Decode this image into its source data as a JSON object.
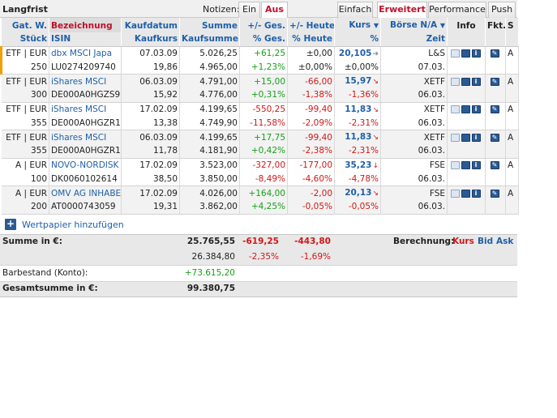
{
  "topbar": {
    "title": "Langfrist",
    "notizen_label": "Notizen:",
    "tabs": {
      "ein": "Ein",
      "aus": "Aus",
      "einfach": "Einfach",
      "erweitert": "Erweitert",
      "performance": "Performance",
      "push": "Push"
    }
  },
  "headers": {
    "row1": {
      "gat": "Gat.",
      "w": "W.",
      "bezeichnung": "Bezeichnung",
      "kaufdatum": "Kaufdatum",
      "summe": "Summe",
      "ges": "+/- Ges.",
      "heute": "+/- Heute",
      "kurs": "Kurs",
      "kurs_arrow": "▼",
      "boerse": "Börse N/A",
      "boerse_arrow": "▼",
      "info": "Info",
      "fkt": "Fkt.",
      "s": "S"
    },
    "row2": {
      "stueck": "Stück",
      "isin": "ISIN",
      "kaufkurs": "Kaufkurs",
      "kaufsumme": "Kaufsumme",
      "pct_ges": "% Ges.",
      "pct_heute": "% Heute",
      "pct": "%",
      "zeit": "Zeit"
    }
  },
  "positions": [
    {
      "gat_w": "ETF | EUR",
      "name": "dbx MSCI Japa",
      "kaufdatum": "07.03.09",
      "summe": "5.026,25",
      "ges": "+61,25",
      "heute": "±0,00",
      "kurs": "20,105",
      "kurs_trend": "up",
      "boerse": "L&S",
      "stueck": "250",
      "isin": "LU0274209740",
      "kaufkurs": "19,86",
      "kaufsumme": "4.965,00",
      "pct_ges": "+1,23%",
      "pct_heute": "±0,00%",
      "pct": "±0,00%",
      "zeit": "07.03.",
      "s": "A"
    },
    {
      "gat_w": "ETF | EUR",
      "name": "iShares MSCI",
      "kaufdatum": "06.03.09",
      "summe": "4.791,00",
      "ges": "+15,00",
      "heute": "-66,00",
      "kurs": "15,97",
      "kurs_trend": "down",
      "boerse": "XETF",
      "stueck": "300",
      "isin": "DE000A0HGZS9",
      "kaufkurs": "15,92",
      "kaufsumme": "4.776,00",
      "pct_ges": "+0,31%",
      "pct_heute": "-1,38%",
      "pct": "-1,36%",
      "zeit": "06.03.",
      "s": "A"
    },
    {
      "gat_w": "ETF | EUR",
      "name": "iShares MSCI",
      "kaufdatum": "17.02.09",
      "summe": "4.199,65",
      "ges": "-550,25",
      "heute": "-99,40",
      "kurs": "11,83",
      "kurs_trend": "down",
      "boerse": "XETF",
      "stueck": "355",
      "isin": "DE000A0HGZR1",
      "kaufkurs": "13,38",
      "kaufsumme": "4.749,90",
      "pct_ges": "-11,58%",
      "pct_heute": "-2,09%",
      "pct": "-2,31%",
      "zeit": "06.03.",
      "s": "A"
    },
    {
      "gat_w": "ETF | EUR",
      "name": "iShares MSCI",
      "kaufdatum": "06.03.09",
      "summe": "4.199,65",
      "ges": "+17,75",
      "heute": "-99,40",
      "kurs": "11,83",
      "kurs_trend": "down",
      "boerse": "XETF",
      "stueck": "355",
      "isin": "DE000A0HGZR1",
      "kaufkurs": "11,78",
      "kaufsumme": "4.181,90",
      "pct_ges": "+0,42%",
      "pct_heute": "-2,38%",
      "pct": "-2,31%",
      "zeit": "06.03.",
      "s": "A"
    },
    {
      "gat_w": "A | EUR",
      "name": "NOVO-NORDISK",
      "kaufdatum": "17.02.09",
      "summe": "3.523,00",
      "ges": "-327,00",
      "heute": "-177,00",
      "kurs": "35,23",
      "kurs_trend": "down2",
      "boerse": "FSE",
      "stueck": "100",
      "isin": "DK0060102614",
      "kaufkurs": "38,50",
      "kaufsumme": "3.850,00",
      "pct_ges": "-8,49%",
      "pct_heute": "-4,60%",
      "pct": "-4,78%",
      "zeit": "06.03.",
      "s": "A"
    },
    {
      "gat_w": "A | EUR",
      "name": "OMV AG INHABE",
      "kaufdatum": "17.02.09",
      "summe": "4.026,00",
      "ges": "+164,00",
      "heute": "-2,00",
      "kurs": "20,13",
      "kurs_trend": "down",
      "boerse": "FSE",
      "stueck": "200",
      "isin": "AT0000743059",
      "kaufkurs": "19,31",
      "kaufsumme": "3.862,00",
      "pct_ges": "+4,25%",
      "pct_heute": "-0,05%",
      "pct": "-0,05%",
      "zeit": "06.03.",
      "s": "A"
    }
  ],
  "add": {
    "label": "Wertpapier hinzufügen"
  },
  "summary": {
    "summe_label": "Summe in €:",
    "summe": "25.765,55",
    "ges": "-619,25",
    "heute": "-443,80",
    "kaufsumme": "26.384,80",
    "pct_ges": "-2,35%",
    "pct_heute": "-1,69%",
    "berechnung_label": "Berechnung:",
    "berechnung_kurs": "Kurs",
    "berechnung_bid": "Bid",
    "berechnung_ask": "Ask",
    "barbestand_label": "Barbestand (Konto):",
    "barbestand": "+73.615,20",
    "gesamt_label": "Gesamtsumme in €:",
    "gesamt": "99.380,75"
  },
  "icons": {
    "kurs_up": "arrow-right-icon",
    "kurs_down": "arrow-down-red-icon",
    "info_list": "list-icon",
    "info_save": "disk-icon",
    "info_info": "info-icon",
    "fkt_edit": "edit-icon"
  },
  "colors": {
    "positive": "#18a018",
    "negative": "#d01818",
    "link": "#1f5fa8",
    "active_tab": "#c0102a",
    "header_bg": "#e8e8e8",
    "row_alt": "#f2f2f2"
  }
}
